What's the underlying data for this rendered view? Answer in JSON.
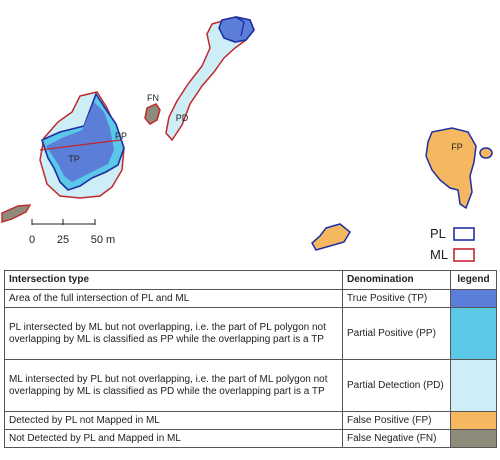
{
  "map": {
    "labels": {
      "fn": "FN",
      "pd": "PD",
      "tp": "TP",
      "pp": "PP",
      "fp": "FP"
    },
    "scale": {
      "tick0": "0",
      "tick1": "25",
      "tick2": "50 m"
    },
    "key": {
      "pl": "PL",
      "ml": "ML"
    }
  },
  "table": {
    "headers": {
      "type": "Intersection type",
      "denomination": "Denomination",
      "legend": "legend"
    },
    "rows": [
      {
        "type": "Area of the full intersection of PL and ML",
        "denomination": "True Positive (TP)",
        "color": "#5b7fd9"
      },
      {
        "type": "PL intersected by ML but not overlapping, i.e.  the part of  PL polygon not overlapping by  ML is classified  as PP while  the overlapping  part is a TP",
        "denomination": "Partial Positive (PP)",
        "color": "#5cc8e8"
      },
      {
        "type": "ML intersected by PL but not overlapping, i.e.  the part of  ML polygon not overlapping by  ML is classified  as PD while  the overlapping  part is a TP",
        "denomination": "Partial Detection (PD)",
        "color": "#cdeef6"
      },
      {
        "type": "Detected by PL not Mapped in ML",
        "denomination": "False Positive (FP)",
        "color": "#f5b860"
      },
      {
        "type": "Not Detected by PL and Mapped in ML",
        "denomination": "False Negative (FN)",
        "color": "#8e8b7b"
      }
    ]
  },
  "colors": {
    "pl_outline": "#1f2fa3",
    "ml_outline": "#c0282d",
    "tp": "#5b7fd9",
    "pp": "#5cc8e8",
    "pd": "#cdeef6",
    "fp": "#f5b860",
    "fn": "#8e8b7b"
  }
}
